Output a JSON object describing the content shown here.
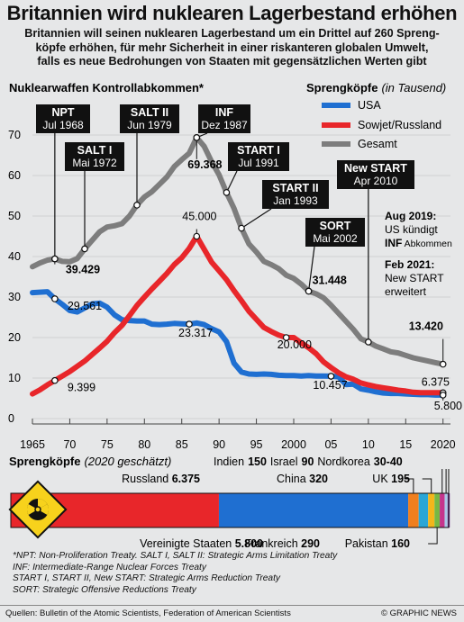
{
  "header": {
    "title": "Britannien wird nuklearen Lagerbestand erhöhen",
    "subtitle_lines": [
      "Britannien will seinen nuklearen Lagerbestand um ein Drittel auf 260 Spreng-",
      "köpfe erhöhen, für mehr Sicherheit in einer riskanteren globalen Umwelt,",
      "falls es neue Bedrohungen von Staaten mit gegensätzlichen Werten gibt"
    ]
  },
  "chart_data": [
    {
      "type": "line",
      "title": "Nuklearwaffen Kontrollabkommen*",
      "legend_title": "Sprengköpfe",
      "legend_unit": "(in Tausend)",
      "legend_placement": "top-right",
      "xlim": [
        1965,
        2021
      ],
      "ylim": [
        0,
        70
      ],
      "x_ticks": [
        1965,
        1970,
        1975,
        1980,
        1985,
        1990,
        1995,
        2000,
        2005,
        2010,
        2015,
        2020
      ],
      "x_tick_labels": [
        "1965",
        "70",
        "75",
        "80",
        "85",
        "90",
        "95",
        "2000",
        "05",
        "10",
        "15",
        "2020"
      ],
      "y_ticks": [
        0,
        10,
        20,
        30,
        40,
        50,
        60,
        70
      ],
      "series": [
        {
          "name": "USA",
          "color": "#1f6fd1",
          "x": [
            1965,
            1966,
            1967,
            1968,
            1969,
            1970,
            1971,
            1972,
            1973,
            1974,
            1975,
            1976,
            1977,
            1978,
            1979,
            1980,
            1981,
            1982,
            1983,
            1984,
            1985,
            1986,
            1987,
            1988,
            1989,
            1990,
            1991,
            1992,
            1993,
            1994,
            1995,
            1996,
            1997,
            1998,
            1999,
            2000,
            2001,
            2002,
            2003,
            2004,
            2005,
            2006,
            2007,
            2008,
            2009,
            2010,
            2011,
            2012,
            2013,
            2014,
            2015,
            2016,
            2017,
            2018,
            2019,
            2020
          ],
          "values": [
            31.1,
            31.2,
            31.3,
            29.561,
            28.2,
            26.7,
            26.3,
            27.3,
            28.3,
            28.5,
            27.5,
            25.6,
            24.4,
            24.2,
            24.1,
            24.1,
            23.3,
            23.2,
            23.3,
            23.5,
            23.4,
            23.317,
            23.6,
            23.2,
            22.2,
            21.4,
            19.0,
            13.7,
            11.5,
            11.0,
            10.9,
            11.0,
            10.9,
            10.7,
            10.6,
            10.6,
            10.5,
            10.6,
            10.5,
            10.5,
            10.457,
            10.3,
            8.4,
            8.5,
            7.3,
            7.0,
            6.6,
            6.3,
            6.2,
            6.2,
            6.1,
            6.0,
            5.9,
            5.9,
            5.8,
            5.8
          ]
        },
        {
          "name": "Sowjet/Russland",
          "color": "#e8262a",
          "x": [
            1965,
            1966,
            1967,
            1968,
            1969,
            1970,
            1971,
            1972,
            1973,
            1974,
            1975,
            1976,
            1977,
            1978,
            1979,
            1980,
            1981,
            1982,
            1983,
            1984,
            1985,
            1986,
            1987,
            1988,
            1989,
            1990,
            1991,
            1992,
            1993,
            1994,
            1995,
            1996,
            1997,
            1998,
            1999,
            2000,
            2001,
            2002,
            2003,
            2004,
            2005,
            2006,
            2007,
            2008,
            2009,
            2010,
            2011,
            2012,
            2013,
            2014,
            2015,
            2016,
            2017,
            2018,
            2019,
            2020
          ],
          "values": [
            6.1,
            7.1,
            8.3,
            9.399,
            10.5,
            11.6,
            12.9,
            14.2,
            15.8,
            17.4,
            19.1,
            21.2,
            23.0,
            25.4,
            27.9,
            30.0,
            32.0,
            33.9,
            35.8,
            38.0,
            39.7,
            42.0,
            45.0,
            41.8,
            38.6,
            36.5,
            34.3,
            31.6,
            29.1,
            26.5,
            24.5,
            22.5,
            21.5,
            20.6,
            20.0,
            20.0,
            18.7,
            17.5,
            16.0,
            14.0,
            12.6,
            11.3,
            10.3,
            9.7,
            8.8,
            8.3,
            7.9,
            7.6,
            7.3,
            7.0,
            6.8,
            6.5,
            6.4,
            6.375,
            6.4,
            6.375
          ]
        },
        {
          "name": "Gesamt",
          "color": "#7d7d7d",
          "x": [
            1965,
            1966,
            1967,
            1968,
            1969,
            1970,
            1971,
            1972,
            1973,
            1974,
            1975,
            1976,
            1977,
            1978,
            1979,
            1980,
            1981,
            1982,
            1983,
            1984,
            1985,
            1986,
            1987,
            1988,
            1989,
            1990,
            1991,
            1992,
            1993,
            1994,
            1995,
            1996,
            1997,
            1998,
            1999,
            2000,
            2001,
            2002,
            2003,
            2004,
            2005,
            2006,
            2007,
            2008,
            2009,
            2010,
            2011,
            2012,
            2013,
            2014,
            2015,
            2016,
            2017,
            2018,
            2019,
            2020
          ],
          "values": [
            37.5,
            38.4,
            39.1,
            39.429,
            38.8,
            38.7,
            39.5,
            41.9,
            44.0,
            46.1,
            47.3,
            47.6,
            48.1,
            50.0,
            52.7,
            54.7,
            56.0,
            57.8,
            59.6,
            62.2,
            63.9,
            65.5,
            69.368,
            67.2,
            63.4,
            60.2,
            55.8,
            51.9,
            47.0,
            43.1,
            41.1,
            38.8,
            38.0,
            37.0,
            35.4,
            34.6,
            33.2,
            31.448,
            30.8,
            29.8,
            28.0,
            26.0,
            24.0,
            22.0,
            19.7,
            18.9,
            17.9,
            17.2,
            16.5,
            16.2,
            15.6,
            15.0,
            14.6,
            14.2,
            13.8,
            13.42
          ]
        }
      ],
      "value_labels": [
        {
          "x": 1968,
          "series": "Gesamt",
          "text": "39.429"
        },
        {
          "x": 1987,
          "series": "Gesamt",
          "text": "69.368"
        },
        {
          "x": 2002,
          "series": "Gesamt",
          "text": "31.448"
        },
        {
          "x": 2020,
          "series": "Gesamt",
          "text": "13.420"
        },
        {
          "x": 1987,
          "series": "Sowjet/Russland",
          "text": "45.000"
        },
        {
          "x": 1968,
          "series": "Sowjet/Russland",
          "text": "9.399"
        },
        {
          "x": 1999,
          "series": "Sowjet/Russland",
          "text": "20.000"
        },
        {
          "x": 2020,
          "series": "Sowjet/Russland",
          "text": "6.375"
        },
        {
          "x": 1968,
          "series": "USA",
          "text": "29.561"
        },
        {
          "x": 1986,
          "series": "USA",
          "text": "23.317"
        },
        {
          "x": 2005,
          "series": "USA",
          "text": "10.457"
        },
        {
          "x": 2020,
          "series": "USA",
          "text": "5.800"
        }
      ],
      "treaty_annotations": [
        {
          "x": 1968,
          "name": "NPT",
          "date": "Jul 1968"
        },
        {
          "x": 1972,
          "name": "SALT I",
          "date": "Mai 1972"
        },
        {
          "x": 1979,
          "name": "SALT II",
          "date": "Jun 1979"
        },
        {
          "x": 1987,
          "name": "INF",
          "date": "Dez 1987"
        },
        {
          "x": 1991,
          "name": "START I",
          "date": "Jul 1991"
        },
        {
          "x": 1993,
          "name": "START II",
          "date": "Jan  1993"
        },
        {
          "x": 2002,
          "name": "SORT",
          "date": "Mai 2002"
        },
        {
          "x": 2010,
          "name": "New START",
          "date": "Apr 2010"
        }
      ],
      "side_notes": [
        {
          "date": "Aug 2019:",
          "line1": "US kündigt",
          "line2_bold": "INF",
          "line2_rest": " Abkommen"
        },
        {
          "date": "Feb 2021:",
          "line1": "New START",
          "line2_bold": "",
          "line2_rest": "erweitert"
        }
      ]
    },
    {
      "type": "bar",
      "title": "Sprengköpfe",
      "subtitle": "(2020 geschätzt)",
      "orientation": "horizontal-stacked",
      "series": [
        {
          "name": "Russland",
          "value": 6375,
          "text": "6.375",
          "color": "#e8262a"
        },
        {
          "name": "Vereinigte Staaten",
          "value": 5800,
          "text": "5.800",
          "color": "#1f6fd1"
        },
        {
          "name": "China",
          "value": 320,
          "text": "320",
          "color": "#f07f1e"
        },
        {
          "name": "Frankreich",
          "value": 290,
          "text": "290",
          "color": "#2aa6d6"
        },
        {
          "name": "UK",
          "value": 195,
          "text": "195",
          "color": "#f3b61a"
        },
        {
          "name": "Pakistan",
          "value": 160,
          "text": "160",
          "color": "#76b843"
        },
        {
          "name": "Indien",
          "value": 150,
          "text": "150",
          "color": "#c5358c"
        },
        {
          "name": "Israel",
          "value": 90,
          "text": "90",
          "color": "#a9c8e6"
        },
        {
          "name": "Nordkorea",
          "value": 35,
          "text": "30-40",
          "color": "#7f3f98"
        }
      ],
      "top_label": {
        "india": "Indien",
        "india_val": "150",
        "israel": "Israel",
        "israel_val": "90",
        "nk": "Nordkorea",
        "nk_val": "30-40"
      }
    }
  ],
  "notes": [
    "*NPT: Non-Proliferation Treaty. SALT I, SALT II: Strategic Arms Limitation Treaty",
    "INF: Intermediate-Range Nuclear Forces Treaty",
    "START I, START II, New START: Strategic Arms Reduction Treaty",
    "SORT: Strategic Offensive Reductions Treaty"
  ],
  "footer": {
    "source": "Quellen: Bulletin of the Atomic Scientists, Federation of American Scientists",
    "credit": "© GRAPHIC NEWS"
  },
  "colors": {
    "background": "#e6e7e8",
    "usa": "#1f6fd1",
    "russia": "#e8262a",
    "total": "#7d7d7d",
    "callout": "#111111"
  }
}
